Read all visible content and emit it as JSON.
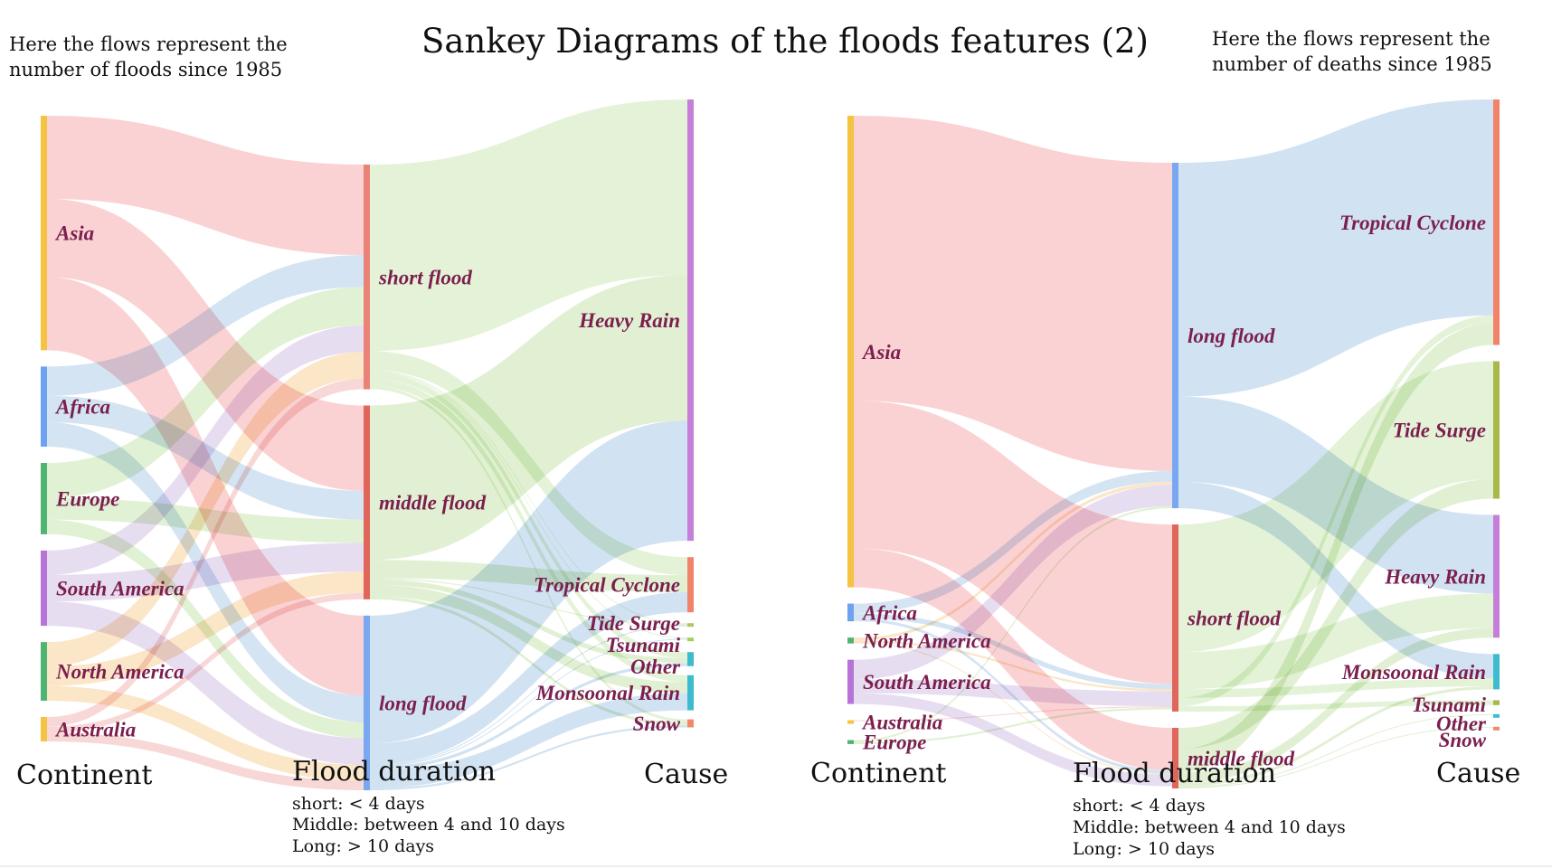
{
  "title": "Sankey Diagrams of the floods features (2)",
  "note_left": [
    "Here the flows represent the",
    "number of floods since 1985"
  ],
  "note_right": [
    "Here the flows represent the",
    "number of deaths since 1985"
  ],
  "column_titles": {
    "left": "Continent",
    "middle": "Flood duration",
    "right": "Cause"
  },
  "duration_legend": [
    "short: < 4 days",
    "Middle: between 4 and 10 days",
    "Long: > 10 days"
  ],
  "colors": {
    "Asia": "#f7b6b9",
    "Africa": "#b9d4ec",
    "Europe": "#cfe8b9",
    "South America": "#d8c8e8",
    "North America": "#f9d7a6",
    "Australia": "#f4c0bd",
    "short flood": "#d6ebc3",
    "middle flood": "#cfe3b7",
    "long flood": "#bcd5ec",
    "node_continent": "#f5c242",
    "node_short": "#e98277",
    "node_middle": "#e0655a",
    "node_long": "#7aa8f0",
    "node_cause": "#c57fd8",
    "label": "#7b1f4e"
  },
  "chart_data": [
    {
      "type": "sankey",
      "subtitle": "Here the flows represent the number of floods since 1985",
      "columns": [
        "Continent",
        "Flood duration",
        "Cause"
      ],
      "nodes": [
        {
          "name": "Asia",
          "col": 0,
          "value": 240,
          "node_color": "#f5c242"
        },
        {
          "name": "Africa",
          "col": 0,
          "value": 82,
          "node_color": "#6da2f0"
        },
        {
          "name": "Europe",
          "col": 0,
          "value": 73,
          "node_color": "#4fb572"
        },
        {
          "name": "South America",
          "col": 0,
          "value": 77,
          "node_color": "#b873d6"
        },
        {
          "name": "North America",
          "col": 0,
          "value": 60,
          "node_color": "#4fb572"
        },
        {
          "name": "Australia",
          "col": 0,
          "value": 25,
          "node_color": "#f5c242"
        },
        {
          "name": "short flood",
          "col": 1,
          "value": 211,
          "node_color": "#e98277"
        },
        {
          "name": "middle flood",
          "col": 1,
          "value": 182,
          "node_color": "#e0655a"
        },
        {
          "name": "long flood",
          "col": 1,
          "value": 164,
          "node_color": "#7aa8f0"
        },
        {
          "name": "Heavy Rain",
          "col": 2,
          "value": 440,
          "node_color": "#c57fd8"
        },
        {
          "name": "Tropical Cyclone",
          "col": 2,
          "value": 55,
          "node_color": "#f0836a"
        },
        {
          "name": "Tide Surge",
          "col": 2,
          "value": 3,
          "node_color": "#b7c25a"
        },
        {
          "name": "Tsunami",
          "col": 2,
          "value": 2,
          "node_color": "#9fd05a"
        },
        {
          "name": "Other",
          "col": 2,
          "value": 14,
          "node_color": "#3dbcd0"
        },
        {
          "name": "Monsoonal Rain",
          "col": 2,
          "value": 35,
          "node_color": "#3dbcd0"
        },
        {
          "name": "Snow",
          "col": 2,
          "value": 8,
          "node_color": "#f08a6a"
        }
      ],
      "links": [
        {
          "source": "Asia",
          "target": "short flood",
          "value": 85
        },
        {
          "source": "Asia",
          "target": "middle flood",
          "value": 80
        },
        {
          "source": "Asia",
          "target": "long flood",
          "value": 75
        },
        {
          "source": "Africa",
          "target": "short flood",
          "value": 30
        },
        {
          "source": "Africa",
          "target": "middle flood",
          "value": 27
        },
        {
          "source": "Africa",
          "target": "long flood",
          "value": 25
        },
        {
          "source": "Europe",
          "target": "short flood",
          "value": 36
        },
        {
          "source": "Europe",
          "target": "middle flood",
          "value": 22
        },
        {
          "source": "Europe",
          "target": "long flood",
          "value": 15
        },
        {
          "source": "South America",
          "target": "short flood",
          "value": 25
        },
        {
          "source": "South America",
          "target": "middle flood",
          "value": 27
        },
        {
          "source": "South America",
          "target": "long flood",
          "value": 25
        },
        {
          "source": "North America",
          "target": "short flood",
          "value": 25
        },
        {
          "source": "North America",
          "target": "middle flood",
          "value": 20
        },
        {
          "source": "North America",
          "target": "long flood",
          "value": 15
        },
        {
          "source": "Australia",
          "target": "short flood",
          "value": 10
        },
        {
          "source": "Australia",
          "target": "middle flood",
          "value": 6
        },
        {
          "source": "Australia",
          "target": "long flood",
          "value": 9
        },
        {
          "source": "short flood",
          "target": "Heavy Rain",
          "value": 175
        },
        {
          "source": "short flood",
          "target": "Tropical Cyclone",
          "value": 18
        },
        {
          "source": "short flood",
          "target": "Tide Surge",
          "value": 1
        },
        {
          "source": "short flood",
          "target": "Tsunami",
          "value": 1
        },
        {
          "source": "short flood",
          "target": "Other",
          "value": 6
        },
        {
          "source": "short flood",
          "target": "Monsoonal Rain",
          "value": 7
        },
        {
          "source": "short flood",
          "target": "Snow",
          "value": 3
        },
        {
          "source": "middle flood",
          "target": "Heavy Rain",
          "value": 145
        },
        {
          "source": "middle flood",
          "target": "Tropical Cyclone",
          "value": 17
        },
        {
          "source": "middle flood",
          "target": "Tide Surge",
          "value": 1
        },
        {
          "source": "middle flood",
          "target": "Other",
          "value": 5
        },
        {
          "source": "middle flood",
          "target": "Monsoonal Rain",
          "value": 11
        },
        {
          "source": "middle flood",
          "target": "Snow",
          "value": 3
        },
        {
          "source": "long flood",
          "target": "Heavy Rain",
          "value": 120
        },
        {
          "source": "long flood",
          "target": "Tropical Cyclone",
          "value": 20
        },
        {
          "source": "long flood",
          "target": "Tide Surge",
          "value": 1
        },
        {
          "source": "long flood",
          "target": "Tsunami",
          "value": 1
        },
        {
          "source": "long flood",
          "target": "Other",
          "value": 3
        },
        {
          "source": "long flood",
          "target": "Monsoonal Rain",
          "value": 17
        },
        {
          "source": "long flood",
          "target": "Snow",
          "value": 2
        }
      ]
    },
    {
      "type": "sankey",
      "subtitle": "Here the flows represent the number of deaths since 1985",
      "columns": [
        "Continent",
        "Flood duration",
        "Cause"
      ],
      "nodes": [
        {
          "name": "Asia",
          "col": 0,
          "value": 480,
          "node_color": "#f5c242"
        },
        {
          "name": "Africa",
          "col": 0,
          "value": 18,
          "node_color": "#6da2f0"
        },
        {
          "name": "North America",
          "col": 0,
          "value": 6,
          "node_color": "#4fb572"
        },
        {
          "name": "South America",
          "col": 0,
          "value": 45,
          "node_color": "#b873d6"
        },
        {
          "name": "Australia",
          "col": 0,
          "value": 1,
          "node_color": "#f5c242"
        },
        {
          "name": "Europe",
          "col": 0,
          "value": 4,
          "node_color": "#4fb572"
        },
        {
          "name": "long flood",
          "col": 1,
          "value": 325,
          "node_color": "#7aa8f0"
        },
        {
          "name": "short flood",
          "col": 1,
          "value": 176,
          "node_color": "#e0655a"
        },
        {
          "name": "middle flood",
          "col": 1,
          "value": 57,
          "node_color": "#e0655a"
        },
        {
          "name": "Tropical Cyclone",
          "col": 2,
          "value": 250,
          "node_color": "#f0836a"
        },
        {
          "name": "Tide Surge",
          "col": 2,
          "value": 140,
          "node_color": "#a8b84a"
        },
        {
          "name": "Heavy Rain",
          "col": 2,
          "value": 125,
          "node_color": "#c57fd8"
        },
        {
          "name": "Monsoonal Rain",
          "col": 2,
          "value": 36,
          "node_color": "#3dbcd0"
        },
        {
          "name": "Tsunami",
          "col": 2,
          "value": 5,
          "node_color": "#a8b84a"
        },
        {
          "name": "Other",
          "col": 2,
          "value": 1,
          "node_color": "#3dbcd0"
        },
        {
          "name": "Snow",
          "col": 2,
          "value": 1,
          "node_color": "#f08a6a"
        }
      ],
      "links": [
        {
          "source": "Asia",
          "target": "long flood",
          "value": 290
        },
        {
          "source": "Asia",
          "target": "short flood",
          "value": 150
        },
        {
          "source": "Asia",
          "target": "middle flood",
          "value": 40
        },
        {
          "source": "Africa",
          "target": "long flood",
          "value": 10
        },
        {
          "source": "Africa",
          "target": "short flood",
          "value": 5
        },
        {
          "source": "Africa",
          "target": "middle flood",
          "value": 3
        },
        {
          "source": "North America",
          "target": "long flood",
          "value": 3
        },
        {
          "source": "North America",
          "target": "short flood",
          "value": 2
        },
        {
          "source": "North America",
          "target": "middle flood",
          "value": 1
        },
        {
          "source": "South America",
          "target": "long flood",
          "value": 20
        },
        {
          "source": "South America",
          "target": "short flood",
          "value": 14
        },
        {
          "source": "South America",
          "target": "middle flood",
          "value": 11
        },
        {
          "source": "Australia",
          "target": "short flood",
          "value": 1
        },
        {
          "source": "Europe",
          "target": "long flood",
          "value": 2
        },
        {
          "source": "Europe",
          "target": "short flood",
          "value": 2
        },
        {
          "source": "long flood",
          "target": "Tropical Cyclone",
          "value": 220
        },
        {
          "source": "long flood",
          "target": "Heavy Rain",
          "value": 80
        },
        {
          "source": "long flood",
          "target": "Monsoonal Rain",
          "value": 25
        },
        {
          "source": "short flood",
          "target": "Tide Surge",
          "value": 120
        },
        {
          "source": "short flood",
          "target": "Heavy Rain",
          "value": 35
        },
        {
          "source": "short flood",
          "target": "Monsoonal Rain",
          "value": 8
        },
        {
          "source": "short flood",
          "target": "Tropical Cyclone",
          "value": 8
        },
        {
          "source": "short flood",
          "target": "Tsunami",
          "value": 5
        },
        {
          "source": "middle flood",
          "target": "Tide Surge",
          "value": 20
        },
        {
          "source": "middle flood",
          "target": "Tropical Cyclone",
          "value": 22
        },
        {
          "source": "middle flood",
          "target": "Heavy Rain",
          "value": 10
        },
        {
          "source": "middle flood",
          "target": "Monsoonal Rain",
          "value": 3
        },
        {
          "source": "middle flood",
          "target": "Other",
          "value": 1
        },
        {
          "source": "middle flood",
          "target": "Snow",
          "value": 1
        }
      ]
    }
  ]
}
